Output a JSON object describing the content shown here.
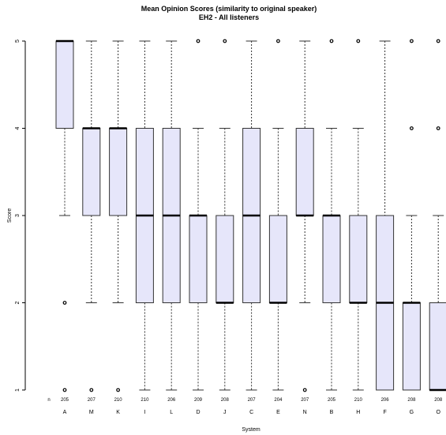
{
  "chart_data": {
    "type": "boxplot",
    "title": "Mean Opinion Scores (similarity to original speaker)",
    "subtitle": "EH2 - All listeners",
    "xlabel": "System",
    "ylabel": "Score",
    "n_label": "n",
    "ylim": [
      1,
      5
    ],
    "yticks": [
      1,
      2,
      3,
      4,
      5
    ],
    "grid": false,
    "categories": [
      "A",
      "M",
      "K",
      "I",
      "L",
      "D",
      "J",
      "C",
      "E",
      "N",
      "B",
      "H",
      "F",
      "G",
      "O"
    ],
    "n": [
      205,
      207,
      210,
      210,
      206,
      209,
      208,
      207,
      204,
      207,
      205,
      210,
      206,
      208,
      208
    ],
    "boxes": [
      {
        "system": "A",
        "whisker_low": 3,
        "q1": 4,
        "median": 5,
        "q3": 5,
        "whisker_high": 5,
        "outliers": [
          2,
          1
        ]
      },
      {
        "system": "M",
        "whisker_low": 2,
        "q1": 3,
        "median": 4,
        "q3": 4,
        "whisker_high": 5,
        "outliers": [
          1
        ]
      },
      {
        "system": "K",
        "whisker_low": 2,
        "q1": 3,
        "median": 4,
        "q3": 4,
        "whisker_high": 5,
        "outliers": [
          1
        ]
      },
      {
        "system": "I",
        "whisker_low": 1,
        "q1": 2,
        "median": 3,
        "q3": 4,
        "whisker_high": 5,
        "outliers": []
      },
      {
        "system": "L",
        "whisker_low": 1,
        "q1": 2,
        "median": 3,
        "q3": 4,
        "whisker_high": 5,
        "outliers": []
      },
      {
        "system": "D",
        "whisker_low": 1,
        "q1": 2,
        "median": 3,
        "q3": 3,
        "whisker_high": 4,
        "outliers": [
          5
        ]
      },
      {
        "system": "J",
        "whisker_low": 1,
        "q1": 2,
        "median": 2,
        "q3": 3,
        "whisker_high": 4,
        "outliers": [
          5
        ]
      },
      {
        "system": "C",
        "whisker_low": 1,
        "q1": 2,
        "median": 3,
        "q3": 4,
        "whisker_high": 5,
        "outliers": []
      },
      {
        "system": "E",
        "whisker_low": 1,
        "q1": 2,
        "median": 2,
        "q3": 3,
        "whisker_high": 4,
        "outliers": [
          5
        ]
      },
      {
        "system": "N",
        "whisker_low": 2,
        "q1": 3,
        "median": 3,
        "q3": 4,
        "whisker_high": 5,
        "outliers": [
          1
        ]
      },
      {
        "system": "B",
        "whisker_low": 1,
        "q1": 2,
        "median": 3,
        "q3": 3,
        "whisker_high": 4,
        "outliers": [
          5
        ]
      },
      {
        "system": "H",
        "whisker_low": 1,
        "q1": 2,
        "median": 2,
        "q3": 3,
        "whisker_high": 4,
        "outliers": [
          5
        ]
      },
      {
        "system": "F",
        "whisker_low": 1,
        "q1": 1,
        "median": 2,
        "q3": 3,
        "whisker_high": 5,
        "outliers": []
      },
      {
        "system": "G",
        "whisker_low": 1,
        "q1": 1,
        "median": 2,
        "q3": 2,
        "whisker_high": 3,
        "outliers": [
          4,
          5
        ]
      },
      {
        "system": "O",
        "whisker_low": 1,
        "q1": 1,
        "median": 1,
        "q3": 2,
        "whisker_high": 3,
        "outliers": [
          4,
          5
        ]
      }
    ],
    "colors": {
      "box_fill": "#e6e6fa",
      "box_stroke": "#333333",
      "median": "#000000"
    }
  }
}
